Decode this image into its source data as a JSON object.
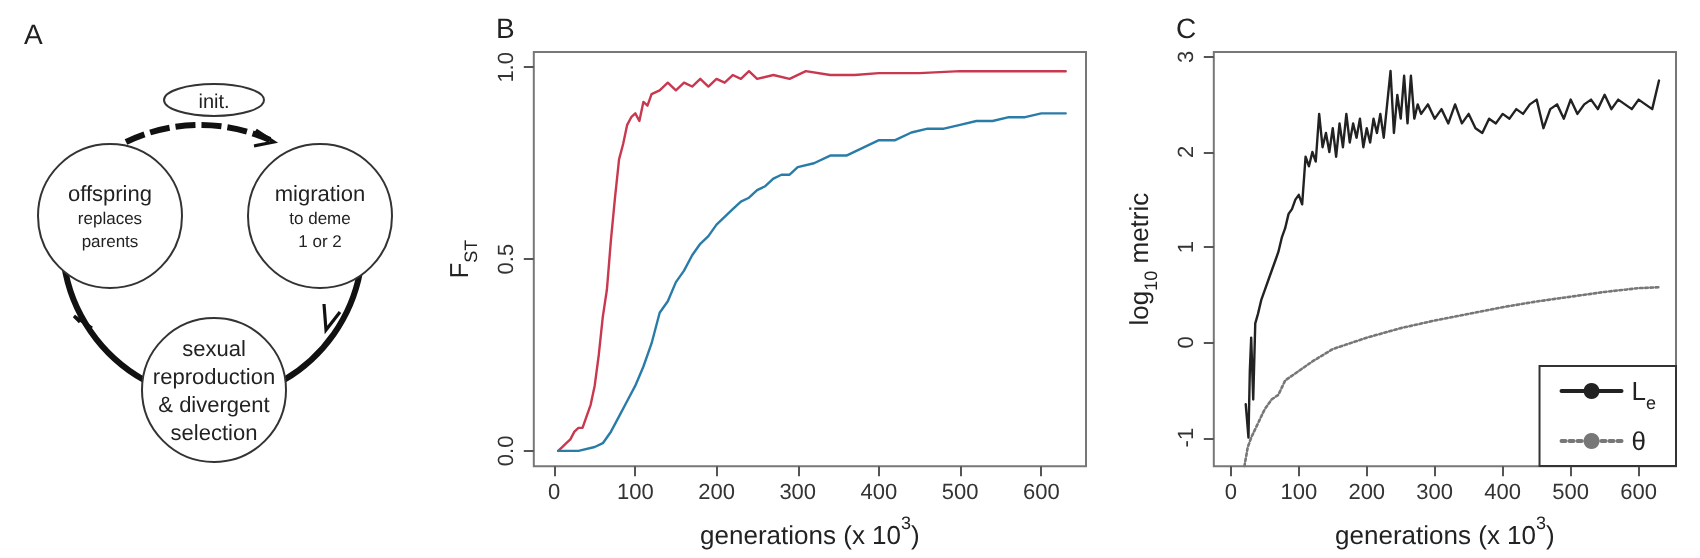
{
  "chart_data": [
    {
      "type": "other",
      "title": "A",
      "annotations": [
        "init.",
        "offspring\nreplaces\nparents",
        "migration\nto deme\n1 or 2",
        "sexual\nreproduction\n& divergent\nselection"
      ]
    },
    {
      "type": "line",
      "title": "B",
      "xlabel": "generations (x 10$^{3}$)",
      "ylabel": "F$_{ST}$",
      "xlim": [
        -25,
        655
      ],
      "xticks": [
        0,
        100,
        200,
        300,
        400,
        500,
        600
      ],
      "ylim": [
        -0.04,
        1.04
      ],
      "yticks": [
        {
          "value": 0,
          "label": "0.0"
        },
        {
          "value": 0.5,
          "label": "0.5"
        },
        {
          "value": 1,
          "label": "1.0"
        }
      ],
      "grid": false,
      "legend": false,
      "marker": "none",
      "line_style": "solid",
      "series": [
        {
          "color": "#c8384f",
          "x": [
            5,
            10,
            15,
            20,
            25,
            30,
            35,
            40,
            45,
            50,
            55,
            60,
            65,
            70,
            75,
            80,
            85,
            90,
            95,
            100,
            105,
            110,
            115,
            120,
            130,
            140,
            150,
            160,
            170,
            180,
            190,
            200,
            210,
            220,
            230,
            240,
            250,
            270,
            290,
            310,
            340,
            370,
            400,
            450,
            500,
            550,
            600,
            630
          ],
          "values": [
            0,
            0.01,
            0.02,
            0.03,
            0.05,
            0.06,
            0.06,
            0.09,
            0.12,
            0.17,
            0.25,
            0.35,
            0.42,
            0.55,
            0.66,
            0.76,
            0.8,
            0.85,
            0.87,
            0.88,
            0.86,
            0.91,
            0.9,
            0.93,
            0.94,
            0.96,
            0.94,
            0.96,
            0.95,
            0.97,
            0.95,
            0.97,
            0.96,
            0.98,
            0.97,
            0.99,
            0.97,
            0.98,
            0.97,
            0.99,
            0.98,
            0.98,
            0.985,
            0.985,
            0.99,
            0.99,
            0.99,
            0.99
          ]
        },
        {
          "color": "#2a7ca8",
          "x": [
            5,
            30,
            50,
            60,
            70,
            80,
            90,
            100,
            110,
            120,
            130,
            140,
            150,
            160,
            170,
            180,
            190,
            200,
            210,
            220,
            230,
            240,
            250,
            260,
            270,
            280,
            290,
            300,
            320,
            340,
            360,
            380,
            400,
            420,
            440,
            460,
            480,
            500,
            520,
            540,
            560,
            580,
            600,
            630
          ],
          "values": [
            0,
            0,
            0.01,
            0.02,
            0.05,
            0.09,
            0.13,
            0.17,
            0.22,
            0.28,
            0.36,
            0.39,
            0.44,
            0.47,
            0.51,
            0.54,
            0.56,
            0.59,
            0.61,
            0.63,
            0.65,
            0.66,
            0.68,
            0.69,
            0.71,
            0.72,
            0.72,
            0.74,
            0.75,
            0.77,
            0.77,
            0.79,
            0.81,
            0.81,
            0.83,
            0.84,
            0.84,
            0.85,
            0.86,
            0.86,
            0.87,
            0.87,
            0.88,
            0.88
          ]
        }
      ]
    },
    {
      "type": "line",
      "title": "C",
      "xlabel": "generations (x 10$^{3}$)",
      "ylabel": "log$_{10}$ metric",
      "xlim": [
        -25,
        655
      ],
      "xticks": [
        0,
        100,
        200,
        300,
        400,
        500,
        600
      ],
      "ylim": [
        -1.3,
        3.05
      ],
      "yticks": [
        -1,
        0,
        1,
        2,
        3
      ],
      "grid": false,
      "legend": "bottom right",
      "marker": "none",
      "series": [
        {
          "name": "L$_{e}$",
          "color": "#222222",
          "line_style": "solid",
          "x": [
            22,
            26,
            28,
            30,
            33,
            36,
            40,
            45,
            50,
            55,
            60,
            65,
            70,
            75,
            80,
            85,
            90,
            95,
            100,
            105,
            110,
            115,
            120,
            125,
            130,
            135,
            140,
            145,
            150,
            155,
            160,
            165,
            170,
            175,
            180,
            185,
            190,
            195,
            200,
            205,
            210,
            215,
            220,
            225,
            230,
            235,
            240,
            245,
            250,
            255,
            260,
            265,
            270,
            275,
            280,
            290,
            300,
            310,
            320,
            330,
            340,
            350,
            360,
            370,
            380,
            390,
            400,
            410,
            420,
            430,
            440,
            450,
            460,
            470,
            480,
            490,
            500,
            510,
            520,
            530,
            540,
            550,
            560,
            570,
            580,
            590,
            600,
            610,
            620,
            630
          ],
          "values": [
            -0.65,
            -1.0,
            -0.3,
            0.05,
            -0.6,
            0.2,
            0.3,
            0.45,
            0.55,
            0.65,
            0.75,
            0.85,
            0.95,
            1.1,
            1.2,
            1.35,
            1.4,
            1.5,
            1.55,
            1.45,
            1.95,
            1.85,
            2.0,
            1.9,
            2.4,
            2.05,
            2.2,
            2.0,
            2.25,
            1.95,
            2.3,
            2.05,
            2.4,
            2.1,
            2.3,
            2.15,
            2.35,
            2.05,
            2.25,
            2.1,
            2.35,
            2.2,
            2.4,
            2.15,
            2.5,
            2.85,
            2.2,
            2.6,
            2.35,
            2.8,
            2.3,
            2.8,
            2.35,
            2.5,
            2.4,
            2.5,
            2.35,
            2.45,
            2.3,
            2.5,
            2.3,
            2.4,
            2.25,
            2.2,
            2.35,
            2.3,
            2.4,
            2.35,
            2.45,
            2.4,
            2.5,
            2.55,
            2.25,
            2.45,
            2.5,
            2.35,
            2.55,
            2.4,
            2.5,
            2.55,
            2.45,
            2.6,
            2.45,
            2.55,
            2.5,
            2.45,
            2.55,
            2.5,
            2.45,
            2.75
          ]
        },
        {
          "name": "θ",
          "color": "#777777",
          "line_style": "dotted",
          "x": [
            20,
            25,
            30,
            40,
            50,
            60,
            70,
            80,
            100,
            120,
            150,
            200,
            250,
            300,
            350,
            400,
            450,
            500,
            550,
            600,
            630
          ],
          "values": [
            -1.3,
            -1.1,
            -1.0,
            -0.85,
            -0.7,
            -0.6,
            -0.55,
            -0.4,
            -0.3,
            -0.2,
            -0.07,
            0.05,
            0.15,
            0.23,
            0.3,
            0.37,
            0.43,
            0.48,
            0.53,
            0.57,
            0.58
          ]
        }
      ]
    }
  ]
}
